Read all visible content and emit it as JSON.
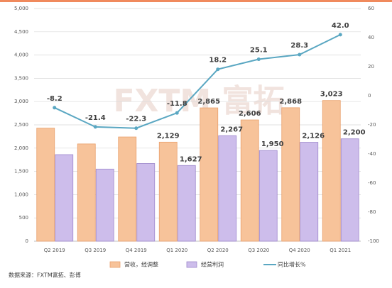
{
  "chart_data": {
    "type": "bar",
    "categories": [
      "Q2 2019",
      "Q3 2019",
      "Q4 2019",
      "Q1 2020",
      "Q2 2020",
      "Q3 2020",
      "Q4 2020",
      "Q1 2021"
    ],
    "series": [
      {
        "name": "营收，经调整",
        "color": "#f7c39a",
        "stroke": "#e9a06c",
        "kind": "bar",
        "values": [
          2430,
          2090,
          2240,
          2129,
          2865,
          2606,
          2868,
          3023
        ],
        "value_labels": [
          null,
          null,
          null,
          "2,129",
          "2,865",
          "2,606",
          "2,868",
          "3,023"
        ]
      },
      {
        "name": "经营利润",
        "color": "#cdbdeb",
        "stroke": "#9d88cc",
        "kind": "bar",
        "values": [
          1860,
          1550,
          1670,
          1627,
          2267,
          1950,
          2126,
          2200
        ],
        "value_labels": [
          null,
          null,
          null,
          "1,627",
          "2,267",
          "1,950",
          "2,126",
          "2,200"
        ]
      },
      {
        "name": "同比增长%",
        "color": "#5aa7c2",
        "kind": "line",
        "axis": "y2",
        "values": [
          -8.2,
          -21.4,
          -22.3,
          -11.8,
          18.2,
          25.1,
          28.3,
          42.0
        ],
        "value_labels": [
          "-8.2",
          "-21.4",
          "-22.3",
          "-11.8",
          "18.2",
          "25.1",
          "28.3",
          "42.0"
        ]
      }
    ],
    "ylim": [
      0,
      5000
    ],
    "yticks": [
      0,
      500,
      {
        "value": 1000,
        "label": "1,000"
      },
      {
        "value": 1500,
        "label": "1,500"
      },
      {
        "value": 2000,
        "label": "2,000"
      },
      {
        "value": 2500,
        "label": "2,500"
      },
      {
        "value": 3000,
        "label": "3,000"
      },
      {
        "value": 3500,
        "label": "3,500"
      },
      {
        "value": 4000,
        "label": "4,000"
      },
      {
        "value": 4500,
        "label": "4,500"
      },
      {
        "value": 5000,
        "label": "5,000"
      }
    ],
    "y2lim": [
      -100,
      60
    ],
    "y2ticks": [
      -100,
      -80,
      -60,
      -40,
      -20,
      0,
      20,
      40,
      60
    ],
    "grid": true,
    "legend": "bottom",
    "watermark": "FXTM 富拓",
    "source": "数据来源：FXTM富拓、彭博"
  }
}
